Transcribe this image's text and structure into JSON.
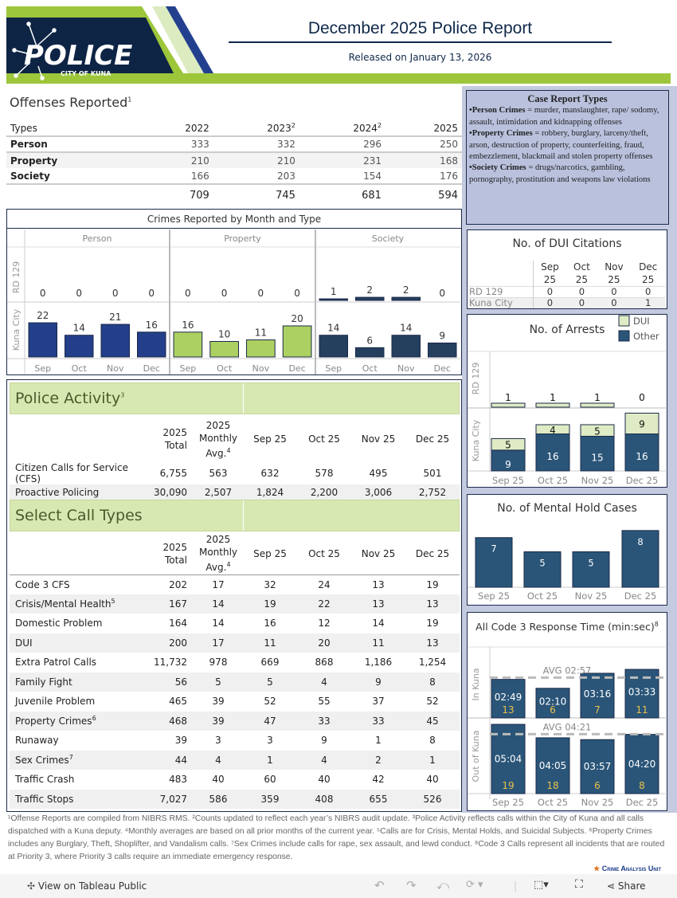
{
  "header": {
    "logo_text": "POLICE",
    "logo_sub": "CITY OF KUNA",
    "title": "December 2025 Police Report",
    "subtitle": "Released on January 13, 2026"
  },
  "colors": {
    "navy": "#10284a",
    "green": "#9dc63b",
    "person": "#233f8a",
    "property": "#acd061",
    "society": "#253f5e",
    "bar": "#2a5578",
    "dui": "#dfebc4",
    "avg_line": "#bbbbbb",
    "count_text": "#e8c04a"
  },
  "offenses": {
    "title": "Offenses Reported",
    "title_sup": "1",
    "headers": [
      "Types",
      "2022",
      "2023",
      "2024",
      "2025"
    ],
    "header_sups": [
      "",
      "",
      "2",
      "2",
      ""
    ],
    "rows": [
      [
        "Person",
        "333",
        "332",
        "296",
        "250"
      ],
      [
        "Property",
        "210",
        "210",
        "231",
        "168"
      ],
      [
        "Society",
        "166",
        "203",
        "154",
        "176"
      ]
    ],
    "totals": [
      "",
      "709",
      "745",
      "681",
      "594"
    ]
  },
  "case_types": {
    "title": "Case Report Types",
    "items": [
      {
        "label": "•Person Crimes",
        "text": " = murder, manslaughter, rape/ sodomy, assault, intimidation and kidnapping offenses"
      },
      {
        "label": "•Property Crimes",
        "text": " = robbery, burglary, larceny/theft, arson, destruction of property, counterfeiting, fraud, embezzlement, blackmail and stolen property offenses"
      },
      {
        "label": "•Society Crimes",
        "text": " = drugs/narcotics, gambling, pornography, prostitution and weapons law violations"
      }
    ]
  },
  "chart_data": [
    {
      "type": "bar",
      "title": "Crimes Reported by Month and Type",
      "columns": [
        "Person",
        "Property",
        "Society"
      ],
      "rows": [
        "RD 129",
        "Kuna City"
      ],
      "categories": [
        "Sep",
        "Oct",
        "Nov",
        "Dec"
      ],
      "values": {
        "RD 129": {
          "Person": [
            0,
            0,
            0,
            0
          ],
          "Property": [
            0,
            0,
            0,
            0
          ],
          "Society": [
            1,
            2,
            2,
            0
          ]
        },
        "Kuna City": {
          "Person": [
            22,
            14,
            21,
            16
          ],
          "Property": [
            16,
            10,
            11,
            20
          ],
          "Society": [
            14,
            6,
            14,
            9
          ]
        }
      }
    },
    {
      "type": "bar",
      "stacked": true,
      "title": "No. of Arrests",
      "legend": [
        "DUI",
        "Other"
      ],
      "legend_position": "top-right",
      "rows": [
        "RD 129",
        "Kuna City"
      ],
      "categories": [
        "Sep 25",
        "Oct 25",
        "Nov 25",
        "Dec 25"
      ],
      "rd129_totals": [
        1,
        1,
        1,
        0
      ],
      "kuna_city": {
        "DUI": [
          5,
          4,
          5,
          9
        ],
        "Other": [
          9,
          16,
          15,
          16
        ]
      }
    },
    {
      "type": "bar",
      "title": "No. of Mental Hold Cases",
      "categories": [
        "Sep 25",
        "Oct 25",
        "Nov 25",
        "Dec 25"
      ],
      "values": [
        7,
        5,
        5,
        8
      ]
    },
    {
      "type": "bar",
      "title": "All Code 3 Response Time (min:sec)",
      "title_sup": "8",
      "rows": [
        "In Kuna",
        "Out of Kuna"
      ],
      "categories": [
        "Sep 25",
        "Oct 25",
        "Nov 25",
        "Dec 25"
      ],
      "in_kuna": {
        "times": [
          "02:49",
          "02:10",
          "03:16",
          "03:33"
        ],
        "counts": [
          13,
          6,
          7,
          11
        ],
        "avg": "AVG 02:57"
      },
      "out_of_kuna": {
        "times": [
          "05:04",
          "04:05",
          "03:57",
          "04:20"
        ],
        "counts": [
          19,
          18,
          6,
          8
        ],
        "avg": "AVG 04:21"
      }
    }
  ],
  "dui": {
    "title": "No. of DUI Citations",
    "months": [
      "Sep",
      "Oct",
      "Nov",
      "Dec"
    ],
    "years": [
      "25",
      "25",
      "25",
      "25"
    ],
    "rows": [
      [
        "RD 129",
        "0",
        "0",
        "0",
        "0"
      ],
      [
        "Kuna City",
        "0",
        "0",
        "0",
        "1"
      ]
    ]
  },
  "activity": {
    "title": "Police Activity",
    "title_sup": "3",
    "headers": [
      "2025 Total",
      "2025 Monthly Avg.",
      "Sep 25",
      "Oct 25",
      "Nov 25",
      "Dec 25"
    ],
    "avg_sup": "4",
    "rows": [
      [
        "Citizen Calls for Service (CFS)",
        "6,755",
        "563",
        "632",
        "578",
        "495",
        "501"
      ],
      [
        "Proactive Policing",
        "30,090",
        "2,507",
        "1,824",
        "2,200",
        "3,006",
        "2,752"
      ]
    ]
  },
  "calls": {
    "title": "Select Call Types",
    "rows": [
      [
        "Code 3 CFS",
        "202",
        "17",
        "32",
        "24",
        "13",
        "19",
        ""
      ],
      [
        "Crisis/Mental Health",
        "167",
        "14",
        "19",
        "22",
        "13",
        "13",
        "5"
      ],
      [
        "Domestic Problem",
        "164",
        "14",
        "16",
        "12",
        "14",
        "19",
        ""
      ],
      [
        "DUI",
        "200",
        "17",
        "11",
        "20",
        "11",
        "13",
        ""
      ],
      [
        "Extra Patrol Calls",
        "11,732",
        "978",
        "669",
        "868",
        "1,186",
        "1,254",
        ""
      ],
      [
        "Family Fight",
        "56",
        "5",
        "5",
        "4",
        "9",
        "8",
        ""
      ],
      [
        "Juvenile Problem",
        "465",
        "39",
        "52",
        "55",
        "37",
        "52",
        ""
      ],
      [
        "Property Crimes",
        "468",
        "39",
        "47",
        "33",
        "33",
        "45",
        "6"
      ],
      [
        "Runaway",
        "39",
        "3",
        "3",
        "9",
        "1",
        "8",
        ""
      ],
      [
        "Sex Crimes",
        "44",
        "4",
        "1",
        "4",
        "2",
        "1",
        "7"
      ],
      [
        "Traffic Crash",
        "483",
        "40",
        "60",
        "40",
        "42",
        "40",
        ""
      ],
      [
        "Traffic Stops",
        "7,027",
        "586",
        "359",
        "408",
        "655",
        "526",
        ""
      ]
    ]
  },
  "footnote": "¹Offense Reports are compiled from NIBRS RMS. ²Counts updated to reflect each year’s NIBRS audit update. ³Police Activity reflects calls within the City of Kuna and all calls dispatched with a Kuna deputy. ⁴Monthly averages are based on all prior months of the current year. ⁵Calls are for Crisis, Mental Holds, and Suicidal Subjects. ⁶Property Crimes includes any Burglary, Theft, Shoplifter, and Vandalism calls. ⁷Sex Crimes include calls for rape, sex assault, and lewd conduct. ⁸Code 3 Calls represent all incidents that are routed at Priority 3, where Priority 3 calls require an immediate emergency response.",
  "crime_unit": "Crime Analysis Unit",
  "toolbar": {
    "view_label": "View on Tableau Public",
    "share_label": "Share"
  }
}
